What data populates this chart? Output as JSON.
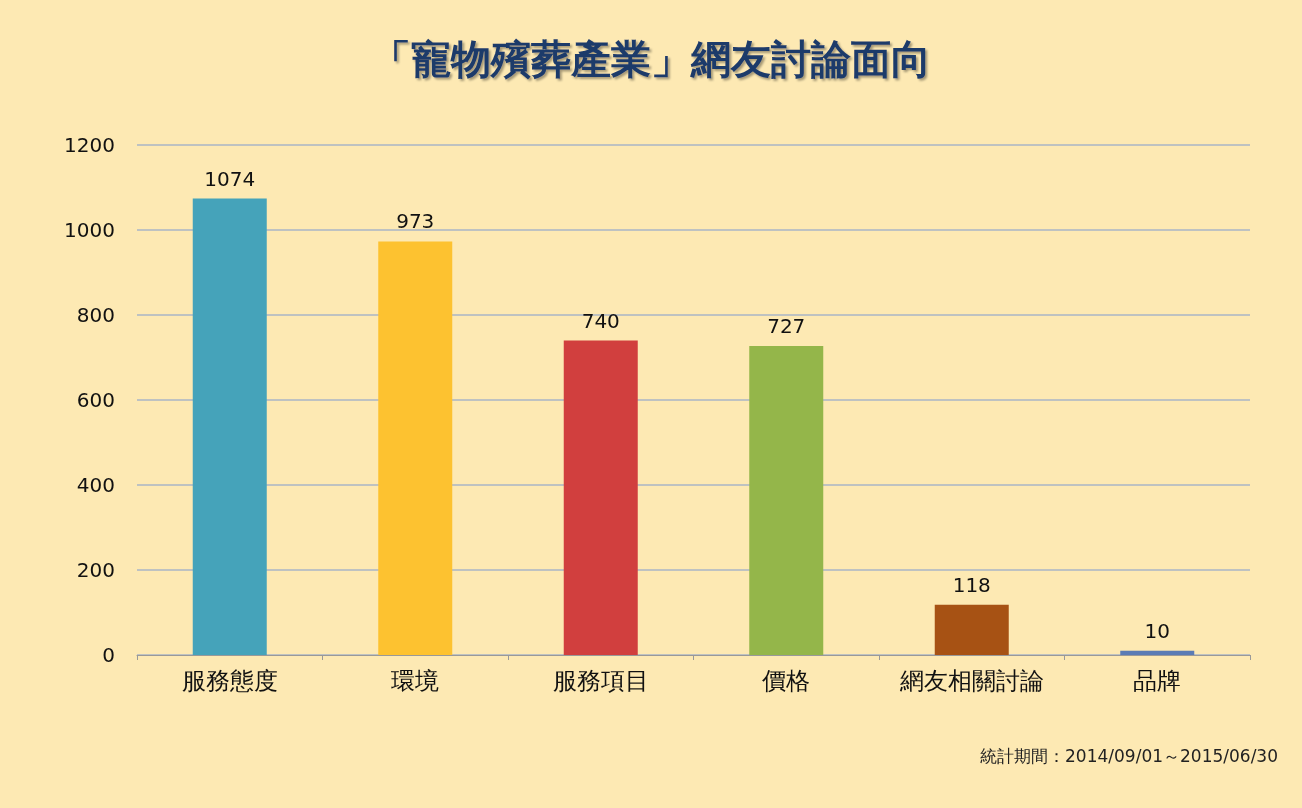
{
  "chart_data": {
    "type": "bar",
    "title": "「寵物殯葬產業」網友討論面向",
    "categories": [
      "服務態度",
      "環境",
      "服務項目",
      "價格",
      "網友相關討論",
      "品牌"
    ],
    "values": [
      1074,
      973,
      740,
      727,
      118,
      10
    ],
    "colors": [
      "#45a3ba",
      "#fdc230",
      "#d13f3e",
      "#94b64a",
      "#a75214",
      "#5b7cb5"
    ],
    "ylim": [
      0,
      1200
    ],
    "yticks": [
      0,
      200,
      400,
      600,
      800,
      1000,
      1200
    ],
    "grid": "y",
    "data_labels": true,
    "annotations": [
      "統計期間：2014/09/01～2015/06/30"
    ]
  }
}
